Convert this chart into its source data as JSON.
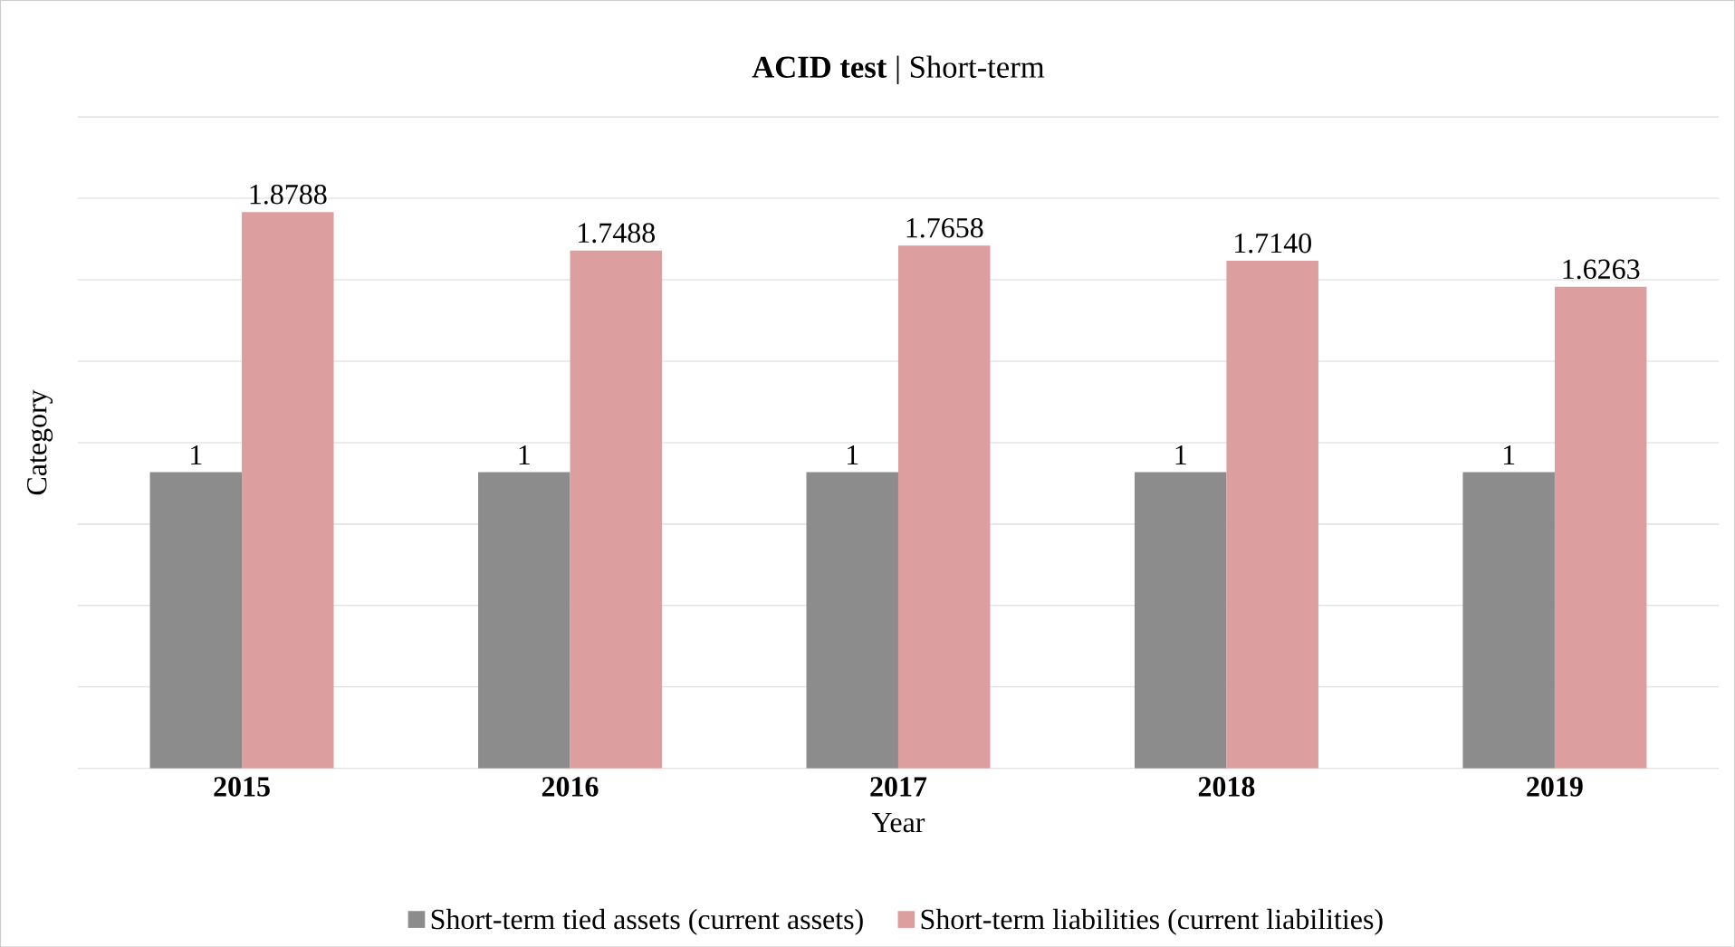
{
  "chart_data": {
    "type": "bar",
    "title": "**ACID test** | Short-term",
    "xlabel": "Year",
    "ylabel": "Category",
    "categories": [
      "2015",
      "2016",
      "2017",
      "2018",
      "2019"
    ],
    "series": [
      {
        "name": "Short-term tied assets (current assets)",
        "color": "#8c8c8c",
        "values": [
          1,
          1,
          1,
          1,
          1
        ],
        "value_labels": [
          "1",
          "1",
          "1",
          "1",
          "1"
        ]
      },
      {
        "name": "Short-term liabilities (current liabilities)",
        "color": "#dc9e9e",
        "values": [
          1.8788,
          1.7488,
          1.7658,
          1.714,
          1.6263
        ],
        "value_labels": [
          "1.8788",
          "1.7488",
          "1.7658",
          "1.7140",
          "1.6263"
        ]
      }
    ],
    "ylim": [
      0,
      2.2
    ],
    "yticks": [
      {
        "value": 0,
        "label": null
      },
      {
        "value": 0.275,
        "label": null
      },
      {
        "value": 0.55,
        "label": null
      },
      {
        "value": 0.825,
        "label": null
      },
      {
        "value": 1.1,
        "label": null
      },
      {
        "value": 1.375,
        "label": null
      },
      {
        "value": 1.65,
        "label": null
      },
      {
        "value": 1.925,
        "label": null
      },
      {
        "value": 2.2,
        "label": null
      }
    ],
    "grid": "y",
    "legend": "bottom"
  }
}
